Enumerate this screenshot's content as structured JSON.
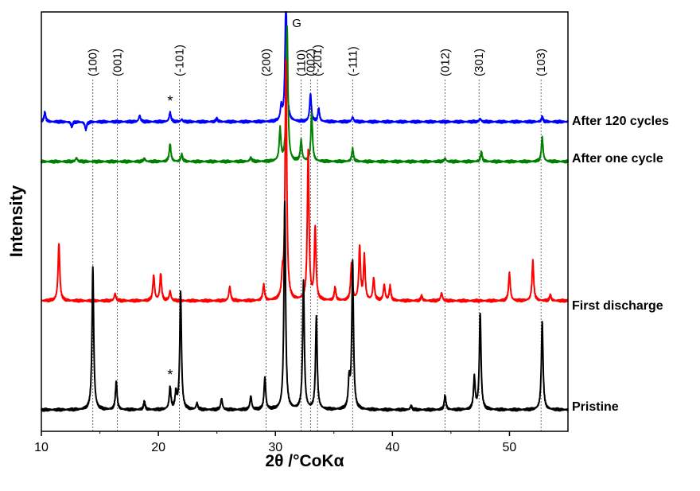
{
  "chart_data": {
    "type": "line",
    "xlabel": "2θ /°CoKα",
    "ylabel": "Intensity",
    "xlim": [
      10,
      55
    ],
    "xticks": [
      10,
      20,
      30,
      40,
      50
    ],
    "grid": false,
    "reflections": [
      {
        "label": "(100)",
        "x": 14.4
      },
      {
        "label": "(001)",
        "x": 16.5
      },
      {
        "label": "(-101)",
        "x": 21.8
      },
      {
        "label": "(200)",
        "x": 29.2
      },
      {
        "label": "(110)",
        "x": 32.2
      },
      {
        "label": "(002)",
        "x": 33.0
      },
      {
        "label": "(-201)",
        "x": 33.6
      },
      {
        "label": "(-111)",
        "x": 36.6
      },
      {
        "label": "(012)",
        "x": 44.5
      },
      {
        "label": "(301)",
        "x": 47.4
      },
      {
        "label": "(103)",
        "x": 52.7
      }
    ],
    "annotations": [
      {
        "text": "G",
        "x": 31.7
      },
      {
        "text": "*",
        "x": 21.0,
        "series": "After 120 cycles"
      },
      {
        "text": "*",
        "x": 21.0,
        "series": "Pristine"
      }
    ],
    "series": [
      {
        "name": "After 120 cycles",
        "color": "#0000ff",
        "peaks": [
          [
            10.3,
            12.0
          ],
          [
            12.6,
            -6.0
          ],
          [
            13.8,
            -10.0
          ],
          [
            18.4,
            8.0
          ],
          [
            21.0,
            12.0
          ],
          [
            22.0,
            3.0
          ],
          [
            25.0,
            4.0
          ],
          [
            30.5,
            18.0
          ],
          [
            30.9,
            160.0
          ],
          [
            33.0,
            35.0
          ],
          [
            33.7,
            16.0
          ],
          [
            36.6,
            6.0
          ],
          [
            47.5,
            4.0
          ],
          [
            52.8,
            6.0
          ]
        ]
      },
      {
        "name": "After one cycle",
        "color": "#008000",
        "peaks": [
          [
            13.0,
            5.0
          ],
          [
            18.8,
            4.0
          ],
          [
            21.0,
            22.0
          ],
          [
            22.0,
            9.0
          ],
          [
            27.9,
            5.0
          ],
          [
            30.4,
            40.0
          ],
          [
            31.0,
            170.0
          ],
          [
            32.2,
            26.0
          ],
          [
            33.1,
            60.0
          ],
          [
            36.6,
            16.0
          ],
          [
            44.5,
            4.0
          ],
          [
            47.6,
            12.0
          ],
          [
            52.8,
            30.0
          ]
        ]
      },
      {
        "name": "First discharge",
        "color": "#ff0000",
        "peaks": [
          [
            11.5,
            72.0
          ],
          [
            16.3,
            9.0
          ],
          [
            19.6,
            32.0
          ],
          [
            20.2,
            34.0
          ],
          [
            21.0,
            12.0
          ],
          [
            26.1,
            18.0
          ],
          [
            29.0,
            20.0
          ],
          [
            30.6,
            25.0
          ],
          [
            30.9,
            300.0
          ],
          [
            32.8,
            188.0
          ],
          [
            33.4,
            90.0
          ],
          [
            35.1,
            16.0
          ],
          [
            36.5,
            45.0
          ],
          [
            37.2,
            67.0
          ],
          [
            37.6,
            55.0
          ],
          [
            38.4,
            28.0
          ],
          [
            39.3,
            20.0
          ],
          [
            39.8,
            18.0
          ],
          [
            42.5,
            6.0
          ],
          [
            44.2,
            10.0
          ],
          [
            50.0,
            35.0
          ],
          [
            52.0,
            50.0
          ],
          [
            53.5,
            7.0
          ]
        ]
      },
      {
        "name": "Pristine",
        "color": "#000000",
        "peaks": [
          [
            14.4,
            180.0
          ],
          [
            16.4,
            35.0
          ],
          [
            18.8,
            10.0
          ],
          [
            21.0,
            28.0
          ],
          [
            21.5,
            20.0
          ],
          [
            21.9,
            148.0
          ],
          [
            23.3,
            8.0
          ],
          [
            25.4,
            14.0
          ],
          [
            27.9,
            17.0
          ],
          [
            29.1,
            40.0
          ],
          [
            30.8,
            260.0
          ],
          [
            32.4,
            160.0
          ],
          [
            33.5,
            115.0
          ],
          [
            36.3,
            35.0
          ],
          [
            36.6,
            185.0
          ],
          [
            41.6,
            5.0
          ],
          [
            44.5,
            18.0
          ],
          [
            47.0,
            40.0
          ],
          [
            47.5,
            120.0
          ],
          [
            52.8,
            110.0
          ]
        ]
      }
    ]
  }
}
